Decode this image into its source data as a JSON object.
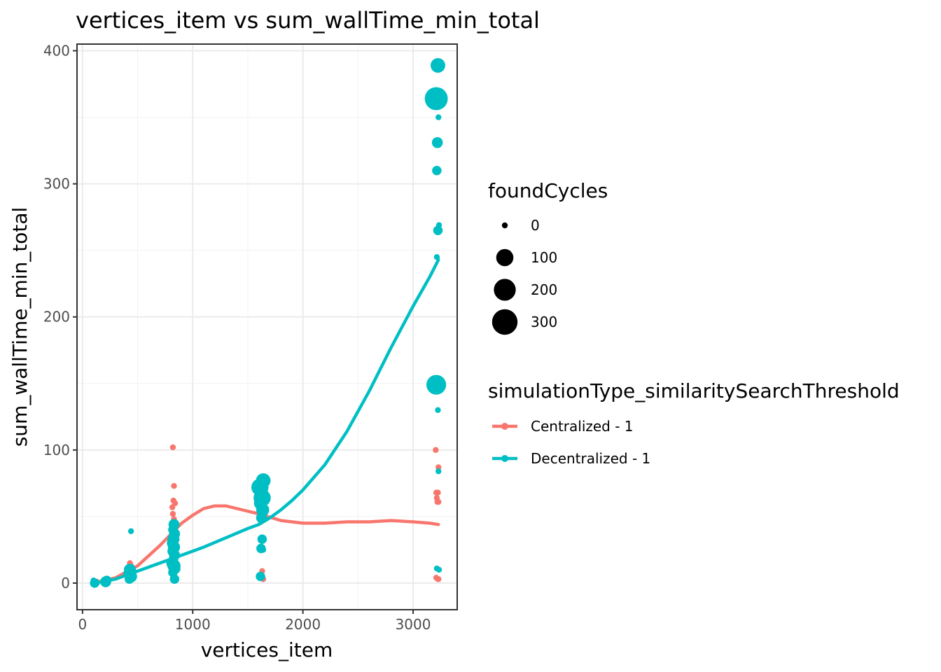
{
  "chart_data": {
    "type": "scatter",
    "title": "vertices_item  vs  sum_wallTime_min_total",
    "xlabel": "vertices_item",
    "ylabel": "sum_wallTime_min_total",
    "xlim": [
      -50,
      3400
    ],
    "ylim": [
      -20,
      405
    ],
    "xticks": [
      0,
      1000,
      2000,
      3000
    ],
    "yticks": [
      0,
      100,
      200,
      300,
      400
    ],
    "x_tick_labels": [
      "0",
      "1000",
      "2000",
      "3000"
    ],
    "y_tick_labels": [
      "0",
      "100",
      "200",
      "300",
      "400"
    ],
    "grid": true,
    "legend_position": "right",
    "size_legend": {
      "title": "foundCycles",
      "levels": [
        0,
        100,
        200,
        300
      ],
      "labels": [
        "0",
        "100",
        "200",
        "300"
      ]
    },
    "color_legend": {
      "title": "simulationType_similaritySearchThreshold",
      "entries": [
        "Centralized - 1",
        "Decentralized - 1"
      ]
    },
    "colors": {
      "Centralized - 1": "#F8766D",
      "Decentralized - 1": "#00BFC4"
    },
    "series": [
      {
        "name": "Centralized - 1",
        "points": [
          {
            "x": 110,
            "y": 0.5,
            "size": 0
          },
          {
            "x": 130,
            "y": 1,
            "size": 0
          },
          {
            "x": 210,
            "y": 1,
            "size": 0
          },
          {
            "x": 230,
            "y": 2,
            "size": 0
          },
          {
            "x": 430,
            "y": 15,
            "size": 0
          },
          {
            "x": 440,
            "y": 13,
            "size": 0
          },
          {
            "x": 420,
            "y": 10,
            "size": 0
          },
          {
            "x": 450,
            "y": 8,
            "size": 0
          },
          {
            "x": 820,
            "y": 102,
            "size": 0
          },
          {
            "x": 830,
            "y": 73,
            "size": 0
          },
          {
            "x": 825,
            "y": 62,
            "size": 0
          },
          {
            "x": 840,
            "y": 60,
            "size": 0
          },
          {
            "x": 815,
            "y": 57,
            "size": 0
          },
          {
            "x": 820,
            "y": 52,
            "size": 0
          },
          {
            "x": 830,
            "y": 48,
            "size": 0
          },
          {
            "x": 835,
            "y": 45,
            "size": 0
          },
          {
            "x": 825,
            "y": 40,
            "size": 0
          },
          {
            "x": 815,
            "y": 34,
            "size": 0
          },
          {
            "x": 1625,
            "y": 60,
            "size": 0
          },
          {
            "x": 1640,
            "y": 58,
            "size": 0
          },
          {
            "x": 1635,
            "y": 55,
            "size": 0
          },
          {
            "x": 1620,
            "y": 52,
            "size": 0
          },
          {
            "x": 1630,
            "y": 9,
            "size": 0
          },
          {
            "x": 1620,
            "y": 4,
            "size": 0
          },
          {
            "x": 1640,
            "y": 3,
            "size": 0
          },
          {
            "x": 3205,
            "y": 100,
            "size": 0
          },
          {
            "x": 3230,
            "y": 87,
            "size": 0
          },
          {
            "x": 3210,
            "y": 68,
            "size": 0
          },
          {
            "x": 3225,
            "y": 68,
            "size": 0
          },
          {
            "x": 3215,
            "y": 64,
            "size": 0
          },
          {
            "x": 3220,
            "y": 61,
            "size": 0
          },
          {
            "x": 3230,
            "y": 61,
            "size": 0
          },
          {
            "x": 3210,
            "y": 4,
            "size": 0
          },
          {
            "x": 3225,
            "y": 3,
            "size": 0
          },
          {
            "x": 3230,
            "y": 3,
            "size": 0
          }
        ],
        "trend": [
          {
            "x": 100,
            "y": 0
          },
          {
            "x": 300,
            "y": 4
          },
          {
            "x": 500,
            "y": 13
          },
          {
            "x": 700,
            "y": 28
          },
          {
            "x": 900,
            "y": 45
          },
          {
            "x": 1000,
            "y": 51
          },
          {
            "x": 1100,
            "y": 56
          },
          {
            "x": 1200,
            "y": 58
          },
          {
            "x": 1300,
            "y": 58
          },
          {
            "x": 1400,
            "y": 56
          },
          {
            "x": 1600,
            "y": 52
          },
          {
            "x": 1800,
            "y": 47
          },
          {
            "x": 2000,
            "y": 45
          },
          {
            "x": 2200,
            "y": 45
          },
          {
            "x": 2400,
            "y": 46
          },
          {
            "x": 2600,
            "y": 46
          },
          {
            "x": 2800,
            "y": 47
          },
          {
            "x": 3000,
            "y": 46
          },
          {
            "x": 3150,
            "y": 45
          },
          {
            "x": 3230,
            "y": 44
          }
        ]
      },
      {
        "name": "Decentralized - 1",
        "points": [
          {
            "x": 100,
            "y": 2,
            "size": 0
          },
          {
            "x": 110,
            "y": 0,
            "size": 10
          },
          {
            "x": 120,
            "y": 1,
            "size": 0
          },
          {
            "x": 130,
            "y": 0,
            "size": 0
          },
          {
            "x": 210,
            "y": 1,
            "size": 20
          },
          {
            "x": 220,
            "y": 2,
            "size": 10
          },
          {
            "x": 230,
            "y": 1,
            "size": 0
          },
          {
            "x": 440,
            "y": 39,
            "size": 0
          },
          {
            "x": 430,
            "y": 10,
            "size": 30
          },
          {
            "x": 420,
            "y": 7,
            "size": 20
          },
          {
            "x": 440,
            "y": 5,
            "size": 30
          },
          {
            "x": 425,
            "y": 3,
            "size": 10
          },
          {
            "x": 445,
            "y": 9,
            "size": 10
          },
          {
            "x": 830,
            "y": 44,
            "size": 20
          },
          {
            "x": 820,
            "y": 40,
            "size": 10
          },
          {
            "x": 835,
            "y": 37,
            "size": 20
          },
          {
            "x": 825,
            "y": 33,
            "size": 30
          },
          {
            "x": 815,
            "y": 30,
            "size": 20
          },
          {
            "x": 830,
            "y": 27,
            "size": 30
          },
          {
            "x": 820,
            "y": 24,
            "size": 20
          },
          {
            "x": 835,
            "y": 21,
            "size": 20
          },
          {
            "x": 825,
            "y": 18,
            "size": 10
          },
          {
            "x": 815,
            "y": 15,
            "size": 30
          },
          {
            "x": 830,
            "y": 13,
            "size": 40
          },
          {
            "x": 840,
            "y": 11,
            "size": 20
          },
          {
            "x": 820,
            "y": 8,
            "size": 10
          },
          {
            "x": 835,
            "y": 3,
            "size": 10
          },
          {
            "x": 1610,
            "y": 72,
            "size": 100
          },
          {
            "x": 1640,
            "y": 77,
            "size": 60
          },
          {
            "x": 1620,
            "y": 68,
            "size": 40
          },
          {
            "x": 1630,
            "y": 64,
            "size": 100
          },
          {
            "x": 1615,
            "y": 60,
            "size": 40
          },
          {
            "x": 1635,
            "y": 55,
            "size": 40
          },
          {
            "x": 1625,
            "y": 49,
            "size": 20
          },
          {
            "x": 1630,
            "y": 33,
            "size": 10
          },
          {
            "x": 1620,
            "y": 26,
            "size": 10
          },
          {
            "x": 1640,
            "y": 25,
            "size": 0
          },
          {
            "x": 1615,
            "y": 5,
            "size": 10
          },
          {
            "x": 3225,
            "y": 389,
            "size": 60
          },
          {
            "x": 3210,
            "y": 364,
            "size": 230
          },
          {
            "x": 3230,
            "y": 350,
            "size": 0
          },
          {
            "x": 3220,
            "y": 331,
            "size": 20
          },
          {
            "x": 3215,
            "y": 310,
            "size": 10
          },
          {
            "x": 3235,
            "y": 269,
            "size": 0
          },
          {
            "x": 3225,
            "y": 265,
            "size": 10
          },
          {
            "x": 3215,
            "y": 245,
            "size": 0
          },
          {
            "x": 3210,
            "y": 149,
            "size": 150
          },
          {
            "x": 3225,
            "y": 130,
            "size": 0
          },
          {
            "x": 3230,
            "y": 84,
            "size": 0
          },
          {
            "x": 3215,
            "y": 11,
            "size": 0
          },
          {
            "x": 3235,
            "y": 10,
            "size": 0
          }
        ],
        "trend": [
          {
            "x": 100,
            "y": 0
          },
          {
            "x": 300,
            "y": 3
          },
          {
            "x": 500,
            "y": 9
          },
          {
            "x": 700,
            "y": 15
          },
          {
            "x": 900,
            "y": 21
          },
          {
            "x": 1100,
            "y": 27
          },
          {
            "x": 1300,
            "y": 34
          },
          {
            "x": 1500,
            "y": 41
          },
          {
            "x": 1600,
            "y": 44
          },
          {
            "x": 1700,
            "y": 49
          },
          {
            "x": 1800,
            "y": 55
          },
          {
            "x": 1900,
            "y": 62
          },
          {
            "x": 2000,
            "y": 70
          },
          {
            "x": 2200,
            "y": 89
          },
          {
            "x": 2400,
            "y": 114
          },
          {
            "x": 2600,
            "y": 144
          },
          {
            "x": 2800,
            "y": 177
          },
          {
            "x": 3000,
            "y": 208
          },
          {
            "x": 3150,
            "y": 230
          },
          {
            "x": 3230,
            "y": 243
          }
        ]
      }
    ]
  }
}
